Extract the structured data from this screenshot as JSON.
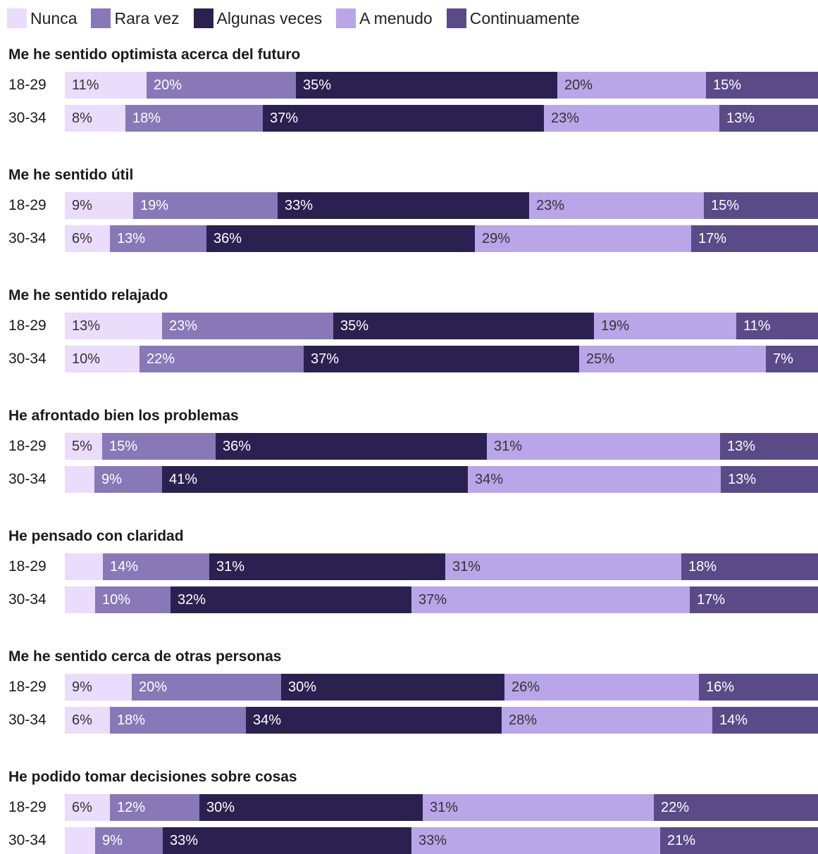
{
  "legend": [
    {
      "label": "Nunca",
      "color": "#eadcfb"
    },
    {
      "label": "Rara vez",
      "color": "#8878b8"
    },
    {
      "label": "Algunas veces",
      "color": "#2b2150"
    },
    {
      "label": "A menudo",
      "color": "#b9a6e8"
    },
    {
      "label": "Continuamente",
      "color": "#5a4a88"
    }
  ],
  "label_text_colors": [
    "#333333",
    "#ffffff",
    "#ffffff",
    "#333333",
    "#ffffff"
  ],
  "chart_data": {
    "type": "bar",
    "orientation": "horizontal",
    "stacked": "100%",
    "categories_per_group": [
      "18-29",
      "30-34"
    ],
    "series_names": [
      "Nunca",
      "Rara vez",
      "Algunas veces",
      "A menudo",
      "Continuamente"
    ],
    "groups": [
      {
        "title": "Me he sentido optimista acerca del futuro",
        "rows": [
          {
            "label": "18-29",
            "values": [
              11,
              20,
              35,
              20,
              15
            ],
            "labels": [
              "11%",
              "20%",
              "35%",
              "20%",
              "15%"
            ]
          },
          {
            "label": "30-34",
            "values": [
              8,
              18,
              37,
              23,
              13
            ],
            "labels": [
              "8%",
              "18%",
              "37%",
              "23%",
              "13%"
            ]
          }
        ]
      },
      {
        "title": "Me he sentido útil",
        "rows": [
          {
            "label": "18-29",
            "values": [
              9,
              19,
              33,
              23,
              15
            ],
            "labels": [
              "9%",
              "19%",
              "33%",
              "23%",
              "15%"
            ]
          },
          {
            "label": "30-34",
            "values": [
              6,
              13,
              36,
              29,
              17
            ],
            "labels": [
              "6%",
              "13%",
              "36%",
              "29%",
              "17%"
            ]
          }
        ]
      },
      {
        "title": "Me he sentido relajado",
        "rows": [
          {
            "label": "18-29",
            "values": [
              13,
              23,
              35,
              19,
              11
            ],
            "labels": [
              "13%",
              "23%",
              "35%",
              "19%",
              "11%"
            ]
          },
          {
            "label": "30-34",
            "values": [
              10,
              22,
              37,
              25,
              7
            ],
            "labels": [
              "10%",
              "22%",
              "37%",
              "25%",
              "7%"
            ]
          }
        ]
      },
      {
        "title": "He afrontado bien los problemas",
        "rows": [
          {
            "label": "18-29",
            "values": [
              5,
              15,
              36,
              31,
              13
            ],
            "labels": [
              "5%",
              "15%",
              "36%",
              "31%",
              "13%"
            ]
          },
          {
            "label": "30-34",
            "values": [
              4,
              9,
              41,
              34,
              13
            ],
            "labels": [
              "",
              "9%",
              "41%",
              "34%",
              "13%"
            ]
          }
        ]
      },
      {
        "title": "He pensado con claridad",
        "rows": [
          {
            "label": "18-29",
            "values": [
              5,
              14,
              31,
              31,
              18
            ],
            "labels": [
              "",
              "14%",
              "31%",
              "31%",
              "18%"
            ]
          },
          {
            "label": "30-34",
            "values": [
              4,
              10,
              32,
              37,
              17
            ],
            "labels": [
              "",
              "10%",
              "32%",
              "37%",
              "17%"
            ]
          }
        ]
      },
      {
        "title": "Me he sentido cerca de otras personas",
        "rows": [
          {
            "label": "18-29",
            "values": [
              9,
              20,
              30,
              26,
              16
            ],
            "labels": [
              "9%",
              "20%",
              "30%",
              "26%",
              "16%"
            ]
          },
          {
            "label": "30-34",
            "values": [
              6,
              18,
              34,
              28,
              14
            ],
            "labels": [
              "6%",
              "18%",
              "34%",
              "28%",
              "14%"
            ]
          }
        ]
      },
      {
        "title": "He podido tomar decisiones sobre cosas",
        "rows": [
          {
            "label": "18-29",
            "values": [
              6,
              12,
              30,
              31,
              22
            ],
            "labels": [
              "6%",
              "12%",
              "30%",
              "31%",
              "22%"
            ]
          },
          {
            "label": "30-34",
            "values": [
              4,
              9,
              33,
              33,
              21
            ],
            "labels": [
              "",
              "9%",
              "33%",
              "33%",
              "21%"
            ]
          }
        ]
      }
    ]
  }
}
